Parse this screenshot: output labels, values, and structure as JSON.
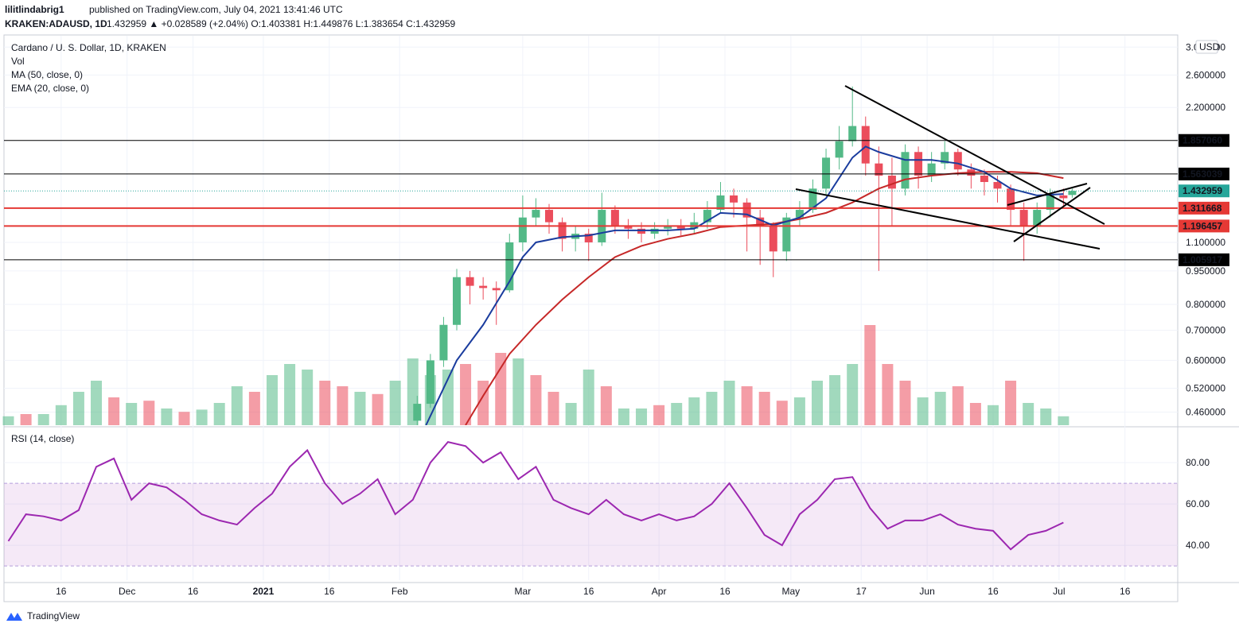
{
  "header": {
    "author": "lilitlindabrig1",
    "published": "published on TradingView.com, July 04, 2021 13:41:46 UTC",
    "symbol": "KRAKEN:ADAUSD, 1D",
    "quote": "1.432959 ▲ +0.028589 (+2.04%) O:1.403381 H:1.449876 L:1.383654 C:1.432959"
  },
  "footer": {
    "brand": "TradingView"
  },
  "chart_data": {
    "type": "candlestick",
    "title": "Cardano / U. S. Dollar, 1D, KRAKEN",
    "currency": "USD",
    "x": [
      35,
      38,
      41,
      44,
      47,
      50,
      53,
      56,
      59,
      62,
      65,
      68,
      71,
      74,
      77,
      80,
      83,
      86,
      89,
      92,
      95,
      98,
      101,
      104,
      107,
      110,
      113,
      116,
      119,
      122,
      125,
      128,
      131,
      134,
      137,
      140,
      143,
      146,
      149,
      152,
      155,
      158,
      161,
      164,
      167,
      170,
      173,
      176,
      179,
      182,
      184
    ],
    "open": [
      0.44,
      0.48,
      0.6,
      0.72,
      0.92,
      0.88,
      0.87,
      0.86,
      1.1,
      1.25,
      1.3,
      1.22,
      1.12,
      1.15,
      1.1,
      1.3,
      1.2,
      1.18,
      1.15,
      1.18,
      1.2,
      1.18,
      1.22,
      1.3,
      1.4,
      1.35,
      1.25,
      1.2,
      1.05,
      1.25,
      1.3,
      1.45,
      1.7,
      1.85,
      2.0,
      1.65,
      1.55,
      1.45,
      1.75,
      1.55,
      1.65,
      1.75,
      1.6,
      1.55,
      1.5,
      1.45,
      1.3,
      1.2,
      1.3,
      1.4,
      1.403381
    ],
    "high": [
      0.5,
      0.62,
      0.75,
      0.96,
      0.95,
      0.92,
      0.9,
      1.15,
      1.4,
      1.38,
      1.34,
      1.25,
      1.2,
      1.18,
      1.42,
      1.33,
      1.24,
      1.22,
      1.22,
      1.24,
      1.24,
      1.28,
      1.36,
      1.5,
      1.45,
      1.38,
      1.3,
      1.22,
      1.28,
      1.36,
      1.52,
      1.78,
      2.0,
      2.45,
      2.1,
      1.8,
      1.7,
      1.82,
      1.8,
      1.75,
      1.85,
      1.78,
      1.65,
      1.6,
      1.55,
      1.48,
      1.35,
      1.35,
      1.45,
      1.45,
      1.449876
    ],
    "low": [
      0.43,
      0.47,
      0.58,
      0.7,
      0.8,
      0.82,
      0.72,
      0.85,
      1.05,
      1.2,
      1.15,
      1.05,
      1.05,
      1.0,
      1.08,
      1.15,
      1.12,
      1.1,
      1.12,
      1.14,
      1.14,
      1.15,
      1.18,
      1.28,
      1.25,
      1.05,
      0.98,
      0.92,
      1.0,
      1.2,
      1.28,
      1.4,
      1.6,
      1.8,
      1.55,
      0.95,
      1.2,
      1.4,
      1.45,
      1.5,
      1.6,
      1.55,
      1.45,
      1.4,
      1.35,
      1.2,
      1.0,
      1.15,
      1.25,
      1.32,
      1.383654
    ],
    "close": [
      0.48,
      0.6,
      0.72,
      0.92,
      0.88,
      0.87,
      0.86,
      1.1,
      1.25,
      1.3,
      1.22,
      1.12,
      1.15,
      1.1,
      1.3,
      1.2,
      1.18,
      1.15,
      1.18,
      1.2,
      1.18,
      1.22,
      1.3,
      1.4,
      1.35,
      1.25,
      1.2,
      1.05,
      1.25,
      1.3,
      1.45,
      1.7,
      1.85,
      2.0,
      1.65,
      1.55,
      1.45,
      1.75,
      1.55,
      1.65,
      1.75,
      1.6,
      1.55,
      1.5,
      1.45,
      1.3,
      1.2,
      1.3,
      1.4,
      1.38,
      1.432959
    ],
    "up_color": "#53b987",
    "down_color": "#eb4d5c",
    "xlim": [
      -59,
      208
    ],
    "xticks": [
      {
        "value": -46,
        "label": "16"
      },
      {
        "value": -31,
        "label": "Dec"
      },
      {
        "value": -16,
        "label": "16"
      },
      {
        "value": 0,
        "label": "2021"
      },
      {
        "value": 15,
        "label": "16"
      },
      {
        "value": 31,
        "label": "Feb"
      },
      {
        "value": 59,
        "label": "Mar"
      },
      {
        "value": 74,
        "label": "16"
      },
      {
        "value": 90,
        "label": "Apr"
      },
      {
        "value": 105,
        "label": "16"
      },
      {
        "value": 120,
        "label": "May"
      },
      {
        "value": 136,
        "label": "17"
      },
      {
        "value": 151,
        "label": "Jun"
      },
      {
        "value": 166,
        "label": "16"
      },
      {
        "value": 181,
        "label": "Jul"
      },
      {
        "value": 196,
        "label": "16"
      }
    ],
    "ylim": [
      0.43,
      3.18
    ],
    "log_scale": true,
    "yticks": [
      {
        "value": 0.46,
        "label": "0.460000"
      },
      {
        "value": 0.52,
        "label": "0.520000"
      },
      {
        "value": 0.6,
        "label": "0.600000"
      },
      {
        "value": 0.7,
        "label": "0.700000"
      },
      {
        "value": 0.8,
        "label": "0.800000"
      },
      {
        "value": 0.95,
        "label": "0.950000"
      },
      {
        "value": 1.1,
        "label": "1.100000"
      },
      {
        "value": 2.2,
        "label": "2.200000"
      },
      {
        "value": 2.6,
        "label": "2.600000"
      },
      {
        "value": 3.0,
        "label": "3.000000"
      }
    ],
    "levels": {
      "values": [
        1.85706,
        1.563039,
        1.311668,
        1.196457,
        1.005917
      ],
      "value_labels": [
        "1.857060",
        "1.563039",
        "1.311668",
        "1.196457",
        "1.005917"
      ],
      "colors": [
        "#000000",
        "#000000",
        "#e53935",
        "#e53935",
        "#000000"
      ]
    },
    "last": 1.432959,
    "last_color": "#26a69a",
    "ma": {
      "name": "MA (50, close, 0)",
      "color": "#c62828",
      "x": [
        46,
        50,
        56,
        62,
        68,
        74,
        80,
        86,
        92,
        98,
        104,
        110,
        116,
        122,
        128,
        134,
        140,
        146,
        152,
        158,
        164,
        170,
        176,
        182
      ],
      "values": [
        0.43,
        0.5,
        0.62,
        0.72,
        0.82,
        0.92,
        1.02,
        1.08,
        1.12,
        1.15,
        1.19,
        1.2,
        1.21,
        1.24,
        1.28,
        1.35,
        1.45,
        1.52,
        1.55,
        1.57,
        1.58,
        1.58,
        1.57,
        1.53
      ]
    },
    "ema": {
      "name": "EMA (20, close, 0)",
      "color": "#1a3c9e",
      "x": [
        37,
        41,
        44,
        50,
        56,
        59,
        62,
        68,
        74,
        80,
        86,
        92,
        98,
        104,
        110,
        116,
        122,
        128,
        134,
        137,
        140,
        146,
        152,
        158,
        164,
        170,
        176,
        182
      ],
      "values": [
        0.43,
        0.52,
        0.6,
        0.72,
        0.9,
        1.02,
        1.1,
        1.13,
        1.14,
        1.17,
        1.17,
        1.17,
        1.18,
        1.28,
        1.27,
        1.2,
        1.25,
        1.38,
        1.7,
        1.8,
        1.75,
        1.68,
        1.68,
        1.65,
        1.58,
        1.45,
        1.4,
        1.41
      ]
    },
    "volume": {
      "name": "Vol",
      "x": [
        -58,
        -54,
        -50,
        -46,
        -42,
        -38,
        -34,
        -30,
        -26,
        -22,
        -18,
        -14,
        -10,
        -6,
        -2,
        2,
        6,
        10,
        14,
        18,
        22,
        26,
        30,
        34,
        38,
        42,
        46,
        50,
        54,
        58,
        62,
        66,
        70,
        74,
        78,
        82,
        86,
        90,
        94,
        98,
        102,
        106,
        110,
        114,
        118,
        122,
        126,
        130,
        134,
        138,
        142,
        146,
        150,
        154,
        158,
        162,
        166,
        170,
        174,
        178,
        182
      ],
      "values": [
        8,
        10,
        10,
        18,
        30,
        40,
        25,
        20,
        22,
        15,
        12,
        14,
        20,
        35,
        30,
        45,
        55,
        50,
        40,
        35,
        30,
        28,
        40,
        60,
        45,
        50,
        55,
        40,
        65,
        60,
        45,
        30,
        20,
        50,
        35,
        15,
        15,
        18,
        20,
        25,
        30,
        40,
        35,
        30,
        22,
        25,
        40,
        45,
        55,
        90,
        55,
        40,
        25,
        30,
        35,
        20,
        18,
        40,
        20,
        15,
        8
      ],
      "up": [
        true,
        false,
        true,
        true,
        true,
        true,
        false,
        true,
        false,
        true,
        false,
        true,
        true,
        true,
        false,
        true,
        true,
        true,
        false,
        false,
        true,
        false,
        true,
        true,
        true,
        true,
        false,
        false,
        false,
        true,
        false,
        false,
        true,
        true,
        false,
        true,
        true,
        false,
        true,
        true,
        true,
        true,
        false,
        false,
        false,
        true,
        true,
        true,
        true,
        false,
        false,
        false,
        true,
        true,
        false,
        false,
        true,
        false,
        true,
        true,
        true
      ]
    },
    "rsi": {
      "name": "RSI (14, close)",
      "color": "#9c27b0",
      "x": [
        -58,
        -54,
        -50,
        -46,
        -42,
        -38,
        -34,
        -30,
        -26,
        -22,
        -18,
        -14,
        -10,
        -6,
        -2,
        2,
        6,
        10,
        14,
        18,
        22,
        26,
        30,
        34,
        38,
        42,
        46,
        50,
        54,
        58,
        62,
        66,
        70,
        74,
        78,
        82,
        86,
        90,
        94,
        98,
        102,
        106,
        110,
        114,
        118,
        122,
        126,
        130,
        134,
        138,
        142,
        146,
        150,
        154,
        158,
        162,
        166,
        170,
        174,
        178,
        182
      ],
      "values": [
        42,
        55,
        54,
        52,
        57,
        78,
        82,
        62,
        70,
        68,
        62,
        55,
        52,
        50,
        58,
        65,
        78,
        86,
        70,
        60,
        65,
        72,
        55,
        62,
        80,
        90,
        88,
        80,
        85,
        72,
        78,
        62,
        58,
        55,
        62,
        55,
        52,
        55,
        52,
        54,
        60,
        70,
        58,
        45,
        40,
        55,
        62,
        72,
        73,
        58,
        48,
        52,
        52,
        55,
        50,
        48,
        47,
        38,
        45,
        47,
        51
      ],
      "ylim": [
        23.1,
        96.2
      ],
      "yticks": [
        {
          "value": 40,
          "label": "40.00"
        },
        {
          "value": 60,
          "label": "60.00"
        },
        {
          "value": 80,
          "label": "80.00"
        }
      ],
      "band": [
        30,
        70
      ]
    }
  }
}
